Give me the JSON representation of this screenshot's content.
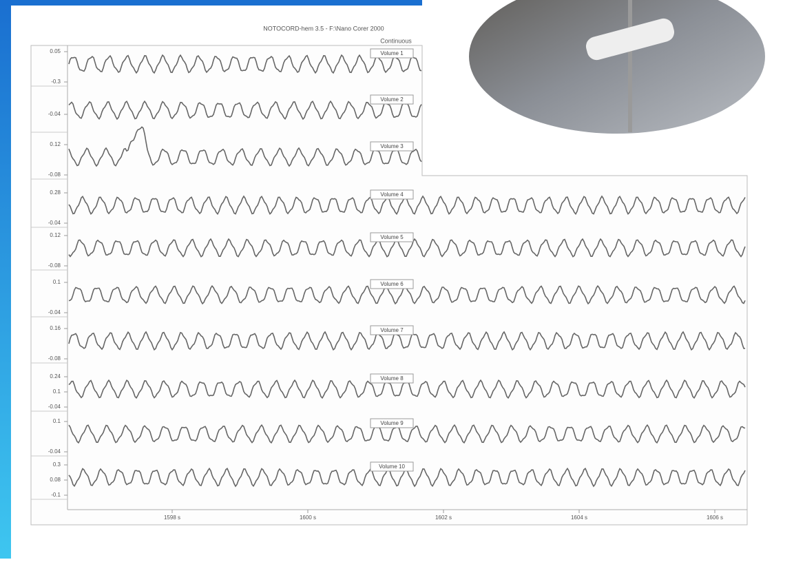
{
  "header": {
    "title": "NOTOCORD-hem 3.5 - F:\\Nano Corer 2000",
    "subtitle": "Continuous"
  },
  "traces": [
    {
      "label": "Volume 1",
      "ticks": [
        "0.05",
        "-0.3"
      ]
    },
    {
      "label": "Volume 2",
      "ticks": [
        "-0.04"
      ]
    },
    {
      "label": "Volume 3",
      "ticks": [
        "0.12",
        "-0.08"
      ]
    },
    {
      "label": "Volume 4",
      "ticks": [
        "0.28",
        "-0.04"
      ]
    },
    {
      "label": "Volume 5",
      "ticks": [
        "0.12",
        "-0.08"
      ]
    },
    {
      "label": "Volume 6",
      "ticks": [
        "0.1",
        "-0.04"
      ]
    },
    {
      "label": "Volume 7",
      "ticks": [
        "0.16",
        "-0.08"
      ]
    },
    {
      "label": "Volume 8",
      "ticks": [
        "0.24",
        "0.1",
        "-0.04"
      ]
    },
    {
      "label": "Volume 9",
      "ticks": [
        "0.1",
        "-0.04"
      ]
    },
    {
      "label": "Volume 10",
      "ticks": [
        "0.3",
        "0.08",
        "-0.1"
      ]
    }
  ],
  "time_axis": [
    "1598 s",
    "1600 s",
    "1602 s",
    "1604 s",
    "1606 s"
  ]
}
